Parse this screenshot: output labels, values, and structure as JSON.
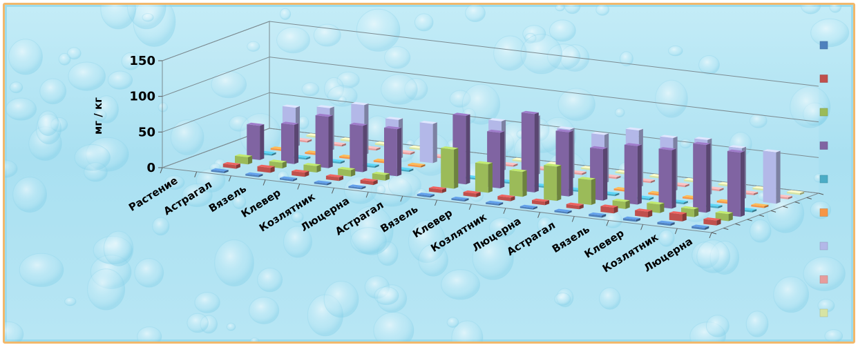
{
  "chart_data": {
    "type": "bar",
    "subtype": "3d-clustered-column",
    "title": "",
    "ylabel": "мг / кг",
    "ylim": [
      0,
      150
    ],
    "yticks": [
      "150",
      "100",
      "50",
      "0"
    ],
    "grid": true,
    "legend_position": "right",
    "categories": [
      "Растение",
      "Астрагал",
      "Вязель",
      "Клевер",
      "Козлятник",
      "Люцерна",
      "Астрагал",
      "Вязель",
      "Клевер",
      "Козлятник",
      "Люцерна",
      "Астрагал",
      "Вязель",
      "Клевер",
      "Козлятник",
      "Люцерна"
    ],
    "series": [
      {
        "color": "#4f81bd",
        "values": [
          null,
          2,
          2,
          2,
          2,
          2,
          null,
          2,
          2,
          2,
          2,
          2,
          3,
          3,
          3,
          3
        ]
      },
      {
        "color": "#c0504d",
        "values": [
          null,
          5,
          7,
          6,
          5,
          5,
          null,
          5,
          5,
          5,
          5,
          5,
          8,
          8,
          10,
          7
        ]
      },
      {
        "color": "#9bbb59",
        "values": [
          null,
          10,
          8,
          9,
          9,
          8,
          null,
          55,
          40,
          35,
          48,
          35,
          10,
          12,
          11,
          10
        ]
      },
      {
        "color": "#8064a2",
        "values": [
          null,
          48,
          55,
          72,
          65,
          66,
          null,
          96,
          78,
          110,
          90,
          72,
          82,
          82,
          95,
          90
        ]
      },
      {
        "color": "#4bacc6",
        "values": [
          null,
          1,
          1,
          1,
          1,
          1,
          null,
          2,
          2,
          2,
          2,
          2,
          2,
          2,
          2,
          2
        ]
      },
      {
        "color": "#f79646",
        "values": [
          null,
          1,
          1,
          1,
          1,
          1,
          null,
          1,
          1,
          1,
          1,
          1,
          1,
          1,
          1,
          1
        ]
      },
      {
        "color": "#b3b8e8",
        "values": [
          null,
          55,
          60,
          70,
          55,
          55,
          null,
          70,
          82,
          70,
          68,
          80,
          75,
          78,
          72,
          72
        ]
      },
      {
        "color": "#e69c9c",
        "values": [
          null,
          1,
          1,
          1,
          1,
          1,
          null,
          1,
          1,
          1,
          1,
          1,
          1,
          1,
          1,
          1
        ]
      },
      {
        "color": "#d7e4a4",
        "values": [
          null,
          1,
          1,
          1,
          1,
          1,
          null,
          1,
          1,
          1,
          1,
          1,
          1,
          1,
          1,
          1
        ]
      }
    ]
  }
}
